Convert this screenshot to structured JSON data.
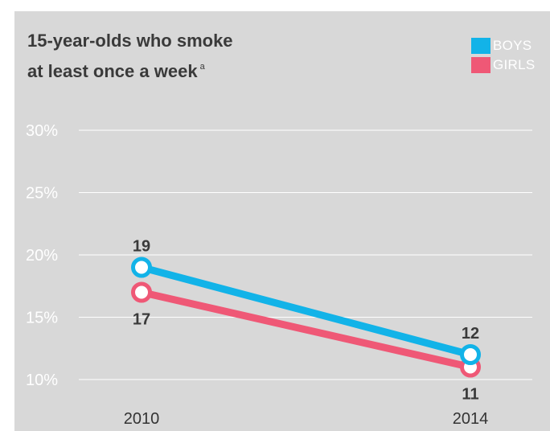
{
  "title_line1": "15-year-olds who smoke",
  "title_line2": "at least once a week",
  "title_note": "a",
  "colors": {
    "boys": "#12b3e8",
    "girls": "#ef5876",
    "grid": "#ffffff",
    "panel": "#d8d8d8"
  },
  "chart_data": {
    "type": "line",
    "x": [
      "2010",
      "2014"
    ],
    "series": [
      {
        "name": "BOYS",
        "values": [
          19,
          12
        ],
        "labels": [
          "19",
          "12"
        ],
        "label_position": "above"
      },
      {
        "name": "GIRLS",
        "values": [
          17,
          11
        ],
        "labels": [
          "17",
          "11"
        ],
        "label_position": "below"
      }
    ],
    "yticks": [
      "30%",
      "25%",
      "20%",
      "15%",
      "10%"
    ],
    "ylim": [
      10,
      30
    ],
    "grid": true,
    "legend": "top-right"
  }
}
